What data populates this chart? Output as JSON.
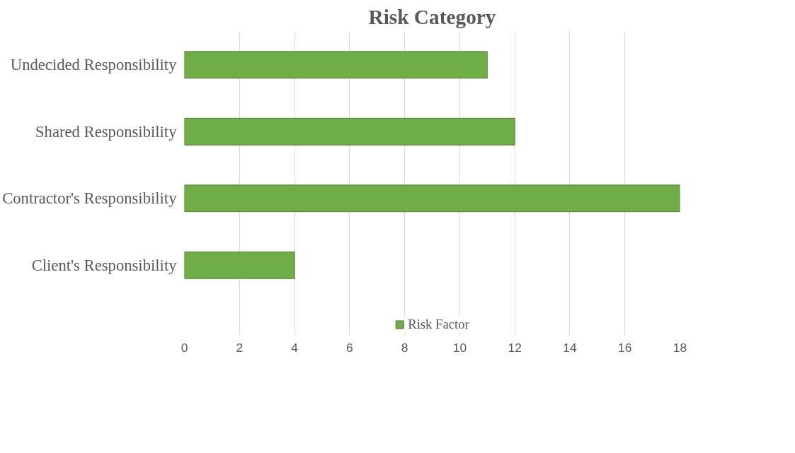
{
  "chart_data": {
    "type": "bar",
    "orientation": "horizontal",
    "title": "Risk Category",
    "categories": [
      "Undecided Responsibility",
      "Shared Responsibility",
      "Contractor's Responsibility",
      "Client's Responsibility"
    ],
    "series": [
      {
        "name": "Risk Factor",
        "color": "#70ad47",
        "values": [
          11,
          12,
          18,
          4
        ]
      }
    ],
    "xlim": [
      0,
      18
    ],
    "xticks": [
      0,
      2,
      4,
      6,
      8,
      10,
      12,
      14,
      16,
      18
    ],
    "grid": "x",
    "legend": "bottom"
  }
}
